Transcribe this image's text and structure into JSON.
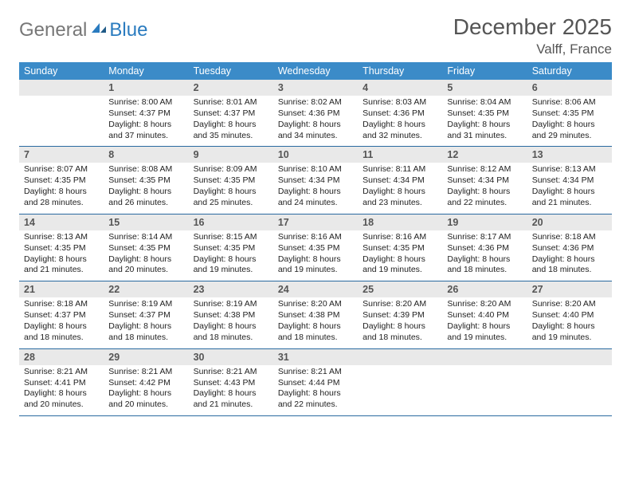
{
  "logo": {
    "general": "General",
    "blue": "Blue"
  },
  "title": "December 2025",
  "location": "Valff, France",
  "colors": {
    "header_bg": "#3b8bc8",
    "header_text": "#ffffff",
    "daynum_bg": "#e9e9e9",
    "row_divider": "#2a6aa0",
    "logo_general": "#777777",
    "logo_blue": "#2a7bbf"
  },
  "dow": [
    "Sunday",
    "Monday",
    "Tuesday",
    "Wednesday",
    "Thursday",
    "Friday",
    "Saturday"
  ],
  "weeks": [
    [
      {
        "n": "",
        "sr": "",
        "ss": "",
        "dl": ""
      },
      {
        "n": "1",
        "sr": "8:00 AM",
        "ss": "4:37 PM",
        "dl": "8 hours and 37 minutes."
      },
      {
        "n": "2",
        "sr": "8:01 AM",
        "ss": "4:37 PM",
        "dl": "8 hours and 35 minutes."
      },
      {
        "n": "3",
        "sr": "8:02 AM",
        "ss": "4:36 PM",
        "dl": "8 hours and 34 minutes."
      },
      {
        "n": "4",
        "sr": "8:03 AM",
        "ss": "4:36 PM",
        "dl": "8 hours and 32 minutes."
      },
      {
        "n": "5",
        "sr": "8:04 AM",
        "ss": "4:35 PM",
        "dl": "8 hours and 31 minutes."
      },
      {
        "n": "6",
        "sr": "8:06 AM",
        "ss": "4:35 PM",
        "dl": "8 hours and 29 minutes."
      }
    ],
    [
      {
        "n": "7",
        "sr": "8:07 AM",
        "ss": "4:35 PM",
        "dl": "8 hours and 28 minutes."
      },
      {
        "n": "8",
        "sr": "8:08 AM",
        "ss": "4:35 PM",
        "dl": "8 hours and 26 minutes."
      },
      {
        "n": "9",
        "sr": "8:09 AM",
        "ss": "4:35 PM",
        "dl": "8 hours and 25 minutes."
      },
      {
        "n": "10",
        "sr": "8:10 AM",
        "ss": "4:34 PM",
        "dl": "8 hours and 24 minutes."
      },
      {
        "n": "11",
        "sr": "8:11 AM",
        "ss": "4:34 PM",
        "dl": "8 hours and 23 minutes."
      },
      {
        "n": "12",
        "sr": "8:12 AM",
        "ss": "4:34 PM",
        "dl": "8 hours and 22 minutes."
      },
      {
        "n": "13",
        "sr": "8:13 AM",
        "ss": "4:34 PM",
        "dl": "8 hours and 21 minutes."
      }
    ],
    [
      {
        "n": "14",
        "sr": "8:13 AM",
        "ss": "4:35 PM",
        "dl": "8 hours and 21 minutes."
      },
      {
        "n": "15",
        "sr": "8:14 AM",
        "ss": "4:35 PM",
        "dl": "8 hours and 20 minutes."
      },
      {
        "n": "16",
        "sr": "8:15 AM",
        "ss": "4:35 PM",
        "dl": "8 hours and 19 minutes."
      },
      {
        "n": "17",
        "sr": "8:16 AM",
        "ss": "4:35 PM",
        "dl": "8 hours and 19 minutes."
      },
      {
        "n": "18",
        "sr": "8:16 AM",
        "ss": "4:35 PM",
        "dl": "8 hours and 19 minutes."
      },
      {
        "n": "19",
        "sr": "8:17 AM",
        "ss": "4:36 PM",
        "dl": "8 hours and 18 minutes."
      },
      {
        "n": "20",
        "sr": "8:18 AM",
        "ss": "4:36 PM",
        "dl": "8 hours and 18 minutes."
      }
    ],
    [
      {
        "n": "21",
        "sr": "8:18 AM",
        "ss": "4:37 PM",
        "dl": "8 hours and 18 minutes."
      },
      {
        "n": "22",
        "sr": "8:19 AM",
        "ss": "4:37 PM",
        "dl": "8 hours and 18 minutes."
      },
      {
        "n": "23",
        "sr": "8:19 AM",
        "ss": "4:38 PM",
        "dl": "8 hours and 18 minutes."
      },
      {
        "n": "24",
        "sr": "8:20 AM",
        "ss": "4:38 PM",
        "dl": "8 hours and 18 minutes."
      },
      {
        "n": "25",
        "sr": "8:20 AM",
        "ss": "4:39 PM",
        "dl": "8 hours and 18 minutes."
      },
      {
        "n": "26",
        "sr": "8:20 AM",
        "ss": "4:40 PM",
        "dl": "8 hours and 19 minutes."
      },
      {
        "n": "27",
        "sr": "8:20 AM",
        "ss": "4:40 PM",
        "dl": "8 hours and 19 minutes."
      }
    ],
    [
      {
        "n": "28",
        "sr": "8:21 AM",
        "ss": "4:41 PM",
        "dl": "8 hours and 20 minutes."
      },
      {
        "n": "29",
        "sr": "8:21 AM",
        "ss": "4:42 PM",
        "dl": "8 hours and 20 minutes."
      },
      {
        "n": "30",
        "sr": "8:21 AM",
        "ss": "4:43 PM",
        "dl": "8 hours and 21 minutes."
      },
      {
        "n": "31",
        "sr": "8:21 AM",
        "ss": "4:44 PM",
        "dl": "8 hours and 22 minutes."
      },
      {
        "n": "",
        "sr": "",
        "ss": "",
        "dl": ""
      },
      {
        "n": "",
        "sr": "",
        "ss": "",
        "dl": ""
      },
      {
        "n": "",
        "sr": "",
        "ss": "",
        "dl": ""
      }
    ]
  ],
  "labels": {
    "sunrise": "Sunrise: ",
    "sunset": "Sunset: ",
    "daylight": "Daylight: "
  }
}
